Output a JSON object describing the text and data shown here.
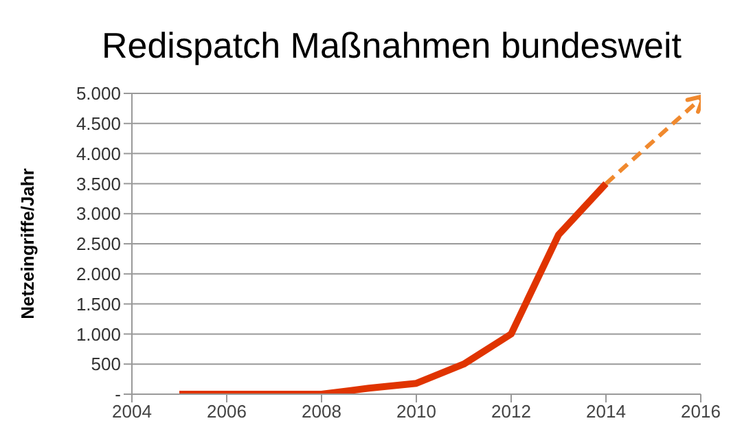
{
  "chart_data": {
    "type": "line",
    "title": "Redispatch Maßnahmen bundesweit",
    "ylabel": "Netzeingriffe/Jahr",
    "series": [
      {
        "color": "#e03400",
        "x": [
          2005,
          2006,
          2007,
          2008,
          2009,
          2010,
          2011,
          2012,
          2013,
          2014
        ],
        "values": [
          0,
          0,
          0,
          0,
          100,
          180,
          500,
          1000,
          2650,
          3500
        ]
      }
    ],
    "xlim": [
      2004,
      2016
    ],
    "xticks": [
      2004,
      2006,
      2008,
      2010,
      2012,
      2014,
      2016
    ],
    "ylim": [
      0,
      5000
    ],
    "yticks": [
      {
        "value": 0,
        "label": "-"
      },
      {
        "value": 500,
        "label": "500"
      },
      {
        "value": 1000,
        "label": "1.000"
      },
      {
        "value": 1500,
        "label": "1.500"
      },
      {
        "value": 2000,
        "label": "2.000"
      },
      {
        "value": 2500,
        "label": "2.500"
      },
      {
        "value": 3000,
        "label": "3.000"
      },
      {
        "value": 3500,
        "label": "3.500"
      },
      {
        "value": 4000,
        "label": "4.000"
      },
      {
        "value": 4500,
        "label": "4.500"
      },
      {
        "value": 5000,
        "label": "5.000"
      }
    ],
    "grid": "y"
  }
}
